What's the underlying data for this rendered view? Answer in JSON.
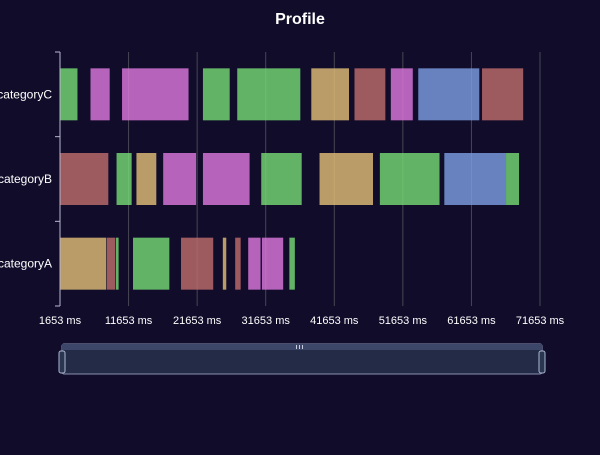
{
  "chart_data": {
    "type": "bar",
    "subtype": "profile-timeline",
    "title": "Profile",
    "categories": [
      "categoryA",
      "categoryB",
      "categoryC"
    ],
    "x_ticks": [
      1653,
      11653,
      21653,
      31653,
      41653,
      51653,
      61653,
      71653
    ],
    "x_tick_suffix": " ms",
    "xlim": [
      1653,
      71653
    ],
    "grid": true,
    "colors": {
      "background": "#100c2a",
      "green": "#75d874",
      "orange": "#e0bc78",
      "purple": "#dc77dc",
      "blue": "#7b9ce1",
      "red": "#bd6d6c",
      "slider_fill": "#2a3550",
      "slider_border": "#8a91b0"
    },
    "series": [
      {
        "category": "categoryC",
        "segments": [
          {
            "start": 1653,
            "end": 4200,
            "color": "green"
          },
          {
            "start": 6100,
            "end": 8900,
            "color": "purple"
          },
          {
            "start": 10700,
            "end": 20400,
            "color": "purple"
          },
          {
            "start": 22500,
            "end": 26400,
            "color": "green"
          },
          {
            "start": 27500,
            "end": 36700,
            "color": "green"
          },
          {
            "start": 38300,
            "end": 43800,
            "color": "orange"
          },
          {
            "start": 44600,
            "end": 49100,
            "color": "red"
          },
          {
            "start": 49900,
            "end": 53100,
            "color": "purple"
          },
          {
            "start": 53900,
            "end": 62800,
            "color": "blue"
          },
          {
            "start": 63200,
            "end": 69200,
            "color": "red"
          }
        ]
      },
      {
        "category": "categoryB",
        "segments": [
          {
            "start": 1653,
            "end": 8700,
            "color": "red"
          },
          {
            "start": 9900,
            "end": 12100,
            "color": "green"
          },
          {
            "start": 12800,
            "end": 15700,
            "color": "orange"
          },
          {
            "start": 16700,
            "end": 21500,
            "color": "purple"
          },
          {
            "start": 22500,
            "end": 29300,
            "color": "purple"
          },
          {
            "start": 31000,
            "end": 36900,
            "color": "green"
          },
          {
            "start": 39500,
            "end": 47300,
            "color": "orange"
          },
          {
            "start": 48300,
            "end": 57000,
            "color": "green"
          },
          {
            "start": 57700,
            "end": 66700,
            "color": "blue"
          },
          {
            "start": 66700,
            "end": 68600,
            "color": "green"
          }
        ]
      },
      {
        "category": "categoryA",
        "segments": [
          {
            "start": 1653,
            "end": 8400,
            "color": "orange"
          },
          {
            "start": 8500,
            "end": 9700,
            "color": "red"
          },
          {
            "start": 9800,
            "end": 10200,
            "color": "green"
          },
          {
            "start": 12300,
            "end": 17600,
            "color": "green"
          },
          {
            "start": 19300,
            "end": 24000,
            "color": "red"
          },
          {
            "start": 25400,
            "end": 25900,
            "color": "orange"
          },
          {
            "start": 27200,
            "end": 28000,
            "color": "red"
          },
          {
            "start": 29100,
            "end": 30900,
            "color": "purple"
          },
          {
            "start": 31100,
            "end": 34200,
            "color": "purple"
          },
          {
            "start": 35100,
            "end": 35900,
            "color": "green"
          }
        ]
      }
    ],
    "data_zoom": {
      "start": 0,
      "end": 100
    }
  }
}
